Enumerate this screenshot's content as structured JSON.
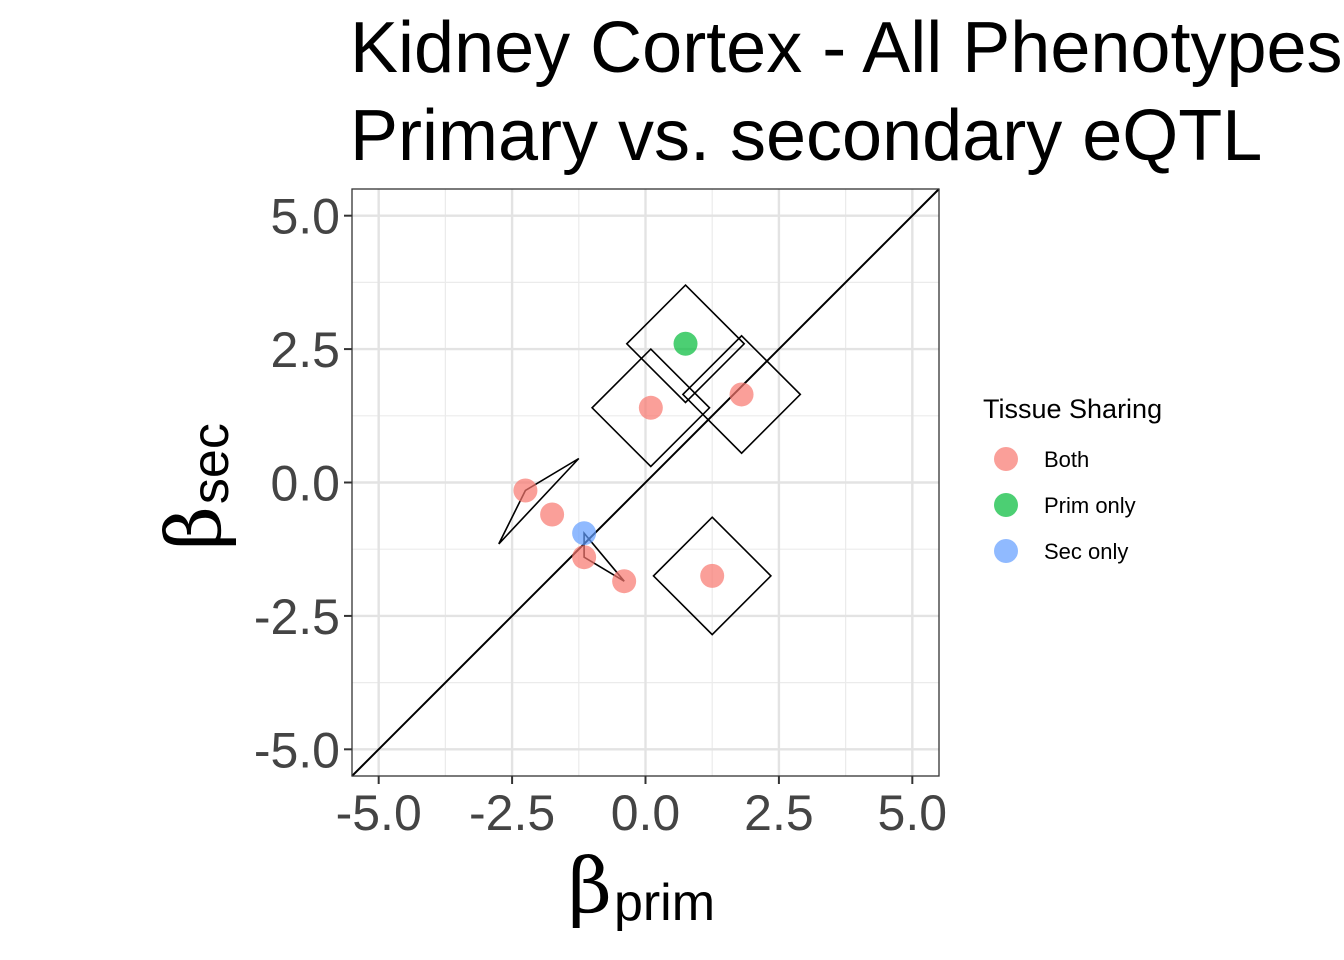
{
  "chart_data": {
    "type": "scatter",
    "title": "Kidney Cortex - All Phenotypes",
    "subtitle": "Primary vs. secondary eQTL",
    "xlabel": {
      "symbol": "β",
      "subscript": "prim"
    },
    "ylabel": {
      "symbol": "β",
      "subscript": "sec"
    },
    "xlim": [
      -5.5,
      5.5
    ],
    "ylim": [
      -5.5,
      5.5
    ],
    "x_ticks": [
      -5.0,
      -2.5,
      0.0,
      2.5,
      5.0
    ],
    "y_ticks": [
      -5.0,
      -2.5,
      0.0,
      2.5,
      5.0
    ],
    "x_tick_labels": [
      "-5.0",
      "-2.5",
      "0.0",
      "2.5",
      "5.0"
    ],
    "y_tick_labels": [
      "-5.0",
      "-2.5",
      "0.0",
      "2.5",
      "5.0"
    ],
    "grid": true,
    "reference_line": "y = x",
    "legend": {
      "title": "Tissue Sharing",
      "position": "right",
      "entries": [
        {
          "label": "Both",
          "color": "#F8766D"
        },
        {
          "label": "Prim only",
          "color": "#00BA38"
        },
        {
          "label": "Sec only",
          "color": "#619CFF"
        }
      ]
    },
    "series": [
      {
        "name": "Both",
        "color": "#F8766D",
        "points": [
          {
            "x": 0.1,
            "y": 1.4
          },
          {
            "x": 1.8,
            "y": 1.65
          },
          {
            "x": -2.25,
            "y": -0.15
          },
          {
            "x": -1.75,
            "y": -0.6
          },
          {
            "x": -1.15,
            "y": -1.4
          },
          {
            "x": -0.4,
            "y": -1.85
          },
          {
            "x": 1.25,
            "y": -1.75
          }
        ]
      },
      {
        "name": "Prim only",
        "color": "#00BA38",
        "points": [
          {
            "x": 0.75,
            "y": 2.6
          }
        ]
      },
      {
        "name": "Sec only",
        "color": "#619CFF",
        "points": [
          {
            "x": -1.15,
            "y": -0.95
          }
        ]
      }
    ],
    "outlines": [
      [
        [
          0.75,
          3.7
        ],
        [
          1.85,
          2.6
        ],
        [
          0.75,
          1.5
        ],
        [
          -0.35,
          2.6
        ]
      ],
      [
        [
          0.1,
          2.5
        ],
        [
          1.2,
          1.4
        ],
        [
          0.1,
          0.3
        ],
        [
          -1.0,
          1.4
        ]
      ],
      [
        [
          1.8,
          2.75
        ],
        [
          2.9,
          1.65
        ],
        [
          1.8,
          0.55
        ],
        [
          0.7,
          1.65
        ]
      ],
      [
        [
          1.25,
          -0.65
        ],
        [
          2.35,
          -1.75
        ],
        [
          1.25,
          -2.85
        ],
        [
          0.15,
          -1.75
        ]
      ],
      [
        [
          -2.75,
          -1.15
        ],
        [
          -1.25,
          0.45
        ],
        [
          -2.25,
          -0.15
        ]
      ],
      [
        [
          -1.15,
          -0.95
        ],
        [
          -1.15,
          -1.4
        ],
        [
          -0.4,
          -1.85
        ]
      ]
    ]
  }
}
